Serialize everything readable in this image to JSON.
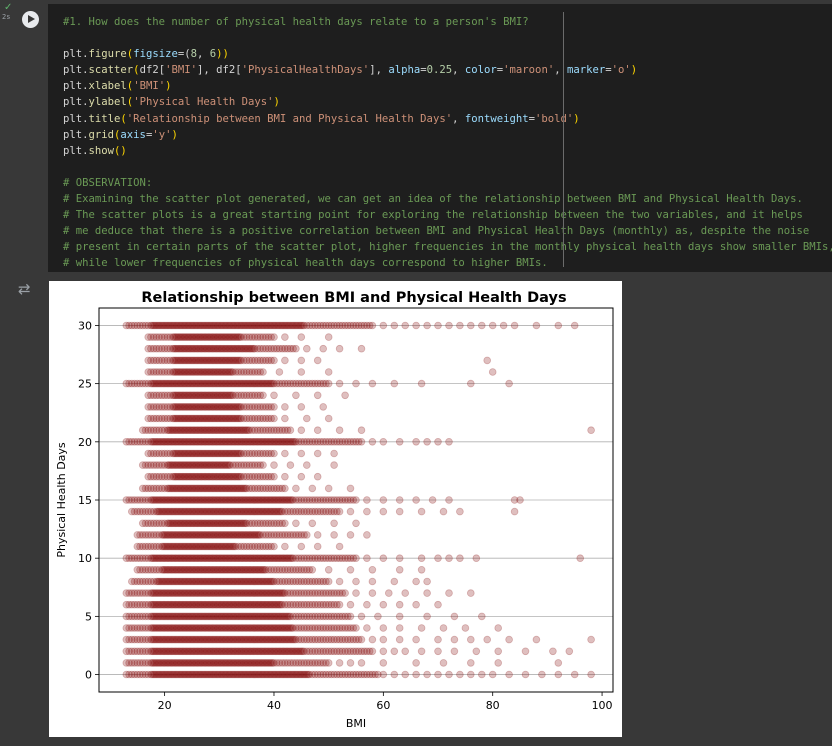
{
  "cell": {
    "status_time": "2s",
    "code_lines": [
      [
        {
          "t": "#1. How does the number of physical health days relate to a person's BMI?",
          "c": "comment"
        }
      ],
      [],
      [
        {
          "t": "plt.",
          "c": "plain"
        },
        {
          "t": "figure",
          "c": "func"
        },
        {
          "t": "(",
          "c": "paren"
        },
        {
          "t": "figsize",
          "c": "param"
        },
        {
          "t": "=(",
          "c": "plain"
        },
        {
          "t": "8",
          "c": "number"
        },
        {
          "t": ", ",
          "c": "plain"
        },
        {
          "t": "6",
          "c": "number"
        },
        {
          "t": "))",
          "c": "paren"
        }
      ],
      [
        {
          "t": "plt.",
          "c": "plain"
        },
        {
          "t": "scatter",
          "c": "func"
        },
        {
          "t": "(",
          "c": "paren"
        },
        {
          "t": "df2[",
          "c": "plain"
        },
        {
          "t": "'BMI'",
          "c": "string"
        },
        {
          "t": "], df2[",
          "c": "plain"
        },
        {
          "t": "'PhysicalHealthDays'",
          "c": "string"
        },
        {
          "t": "], ",
          "c": "plain"
        },
        {
          "t": "alpha",
          "c": "param"
        },
        {
          "t": "=",
          "c": "plain"
        },
        {
          "t": "0.25",
          "c": "number"
        },
        {
          "t": ", ",
          "c": "plain"
        },
        {
          "t": "color",
          "c": "param"
        },
        {
          "t": "=",
          "c": "plain"
        },
        {
          "t": "'maroon'",
          "c": "string"
        },
        {
          "t": ", ",
          "c": "plain"
        },
        {
          "t": "marker",
          "c": "param"
        },
        {
          "t": "=",
          "c": "plain"
        },
        {
          "t": "'o'",
          "c": "string"
        },
        {
          "t": ")",
          "c": "paren"
        }
      ],
      [
        {
          "t": "plt.",
          "c": "plain"
        },
        {
          "t": "xlabel",
          "c": "func"
        },
        {
          "t": "(",
          "c": "paren"
        },
        {
          "t": "'BMI'",
          "c": "string"
        },
        {
          "t": ")",
          "c": "paren"
        }
      ],
      [
        {
          "t": "plt.",
          "c": "plain"
        },
        {
          "t": "ylabel",
          "c": "func"
        },
        {
          "t": "(",
          "c": "paren"
        },
        {
          "t": "'Physical Health Days'",
          "c": "string"
        },
        {
          "t": ")",
          "c": "paren"
        }
      ],
      [
        {
          "t": "plt.",
          "c": "plain"
        },
        {
          "t": "title",
          "c": "func"
        },
        {
          "t": "(",
          "c": "paren"
        },
        {
          "t": "'Relationship between BMI and Physical Health Days'",
          "c": "string"
        },
        {
          "t": ", ",
          "c": "plain"
        },
        {
          "t": "fontweight",
          "c": "param"
        },
        {
          "t": "=",
          "c": "plain"
        },
        {
          "t": "'bold'",
          "c": "string"
        },
        {
          "t": ")",
          "c": "paren"
        }
      ],
      [
        {
          "t": "plt.",
          "c": "plain"
        },
        {
          "t": "grid",
          "c": "func"
        },
        {
          "t": "(",
          "c": "paren"
        },
        {
          "t": "axis",
          "c": "param"
        },
        {
          "t": "=",
          "c": "plain"
        },
        {
          "t": "'y'",
          "c": "string"
        },
        {
          "t": ")",
          "c": "paren"
        }
      ],
      [
        {
          "t": "plt.",
          "c": "plain"
        },
        {
          "t": "show",
          "c": "func"
        },
        {
          "t": "()",
          "c": "paren"
        }
      ],
      [],
      [
        {
          "t": "# OBSERVATION:",
          "c": "comment"
        }
      ],
      [
        {
          "t": "# Examining the scatter plot generated, we can get an idea of the relationship between BMI and Physical Health Days.",
          "c": "comment"
        }
      ],
      [
        {
          "t": "# The scatter plots is a great starting point for exploring the relationship between the two variables, and it helps",
          "c": "comment"
        }
      ],
      [
        {
          "t": "# me deduce that there is a positive correlation between BMI and Physical Health Days (monthly) as, despite the noise",
          "c": "comment"
        }
      ],
      [
        {
          "t": "# present in certain parts of the scatter plot, higher frequencies in the monthly physical health days show smaller BMIs,",
          "c": "comment"
        }
      ],
      [
        {
          "t": "# while lower frequencies of physical health days correspond to higher BMIs.",
          "c": "comment"
        }
      ]
    ]
  },
  "chart_data": {
    "type": "scatter",
    "title": "Relationship between BMI and Physical Health Days",
    "xlabel": "BMI",
    "ylabel": "Physical Health Days",
    "xlim": [
      8,
      102
    ],
    "ylim": [
      -1.5,
      31.5
    ],
    "xticks": [
      20,
      40,
      60,
      80,
      100
    ],
    "yticks": [
      0,
      5,
      10,
      15,
      20,
      25,
      30
    ],
    "grid": "y",
    "marker_color": "#800000",
    "alpha": 0.25,
    "rows": [
      {
        "y": 0,
        "dense": [
          13,
          59
        ],
        "sparse": [
          60,
          62,
          64,
          66,
          68,
          70,
          72,
          74,
          76,
          78,
          80,
          83,
          86,
          89,
          92,
          95,
          98
        ]
      },
      {
        "y": 1,
        "dense": [
          13,
          50
        ],
        "sparse": [
          52,
          54,
          56,
          60,
          66,
          71,
          76,
          81,
          92
        ]
      },
      {
        "y": 2,
        "dense": [
          13,
          58
        ],
        "sparse": [
          60,
          62,
          64,
          67,
          70,
          73,
          77,
          81,
          86,
          91,
          94
        ]
      },
      {
        "y": 3,
        "dense": [
          13,
          56
        ],
        "sparse": [
          58,
          60,
          63,
          66,
          70,
          73,
          76,
          79,
          83,
          88,
          98
        ]
      },
      {
        "y": 4,
        "dense": [
          13,
          55
        ],
        "sparse": [
          57,
          60,
          63,
          67,
          71,
          75,
          81
        ]
      },
      {
        "y": 5,
        "dense": [
          13,
          54
        ],
        "sparse": [
          56,
          59,
          63,
          68,
          73,
          78
        ]
      },
      {
        "y": 6,
        "dense": [
          13,
          52
        ],
        "sparse": [
          54,
          57,
          60,
          63,
          66,
          70
        ]
      },
      {
        "y": 7,
        "dense": [
          13,
          53
        ],
        "sparse": [
          55,
          58,
          61,
          64,
          68,
          72,
          76
        ]
      },
      {
        "y": 8,
        "dense": [
          14,
          50
        ],
        "sparse": [
          52,
          55,
          58,
          62,
          66,
          68
        ]
      },
      {
        "y": 9,
        "dense": [
          15,
          47
        ],
        "sparse": [
          50,
          54,
          58,
          63,
          67
        ]
      },
      {
        "y": 10,
        "dense": [
          13,
          55
        ],
        "sparse": [
          57,
          60,
          63,
          67,
          70,
          72,
          74,
          77,
          96
        ]
      },
      {
        "y": 11,
        "dense": [
          15,
          40
        ],
        "sparse": [
          42,
          45,
          48,
          52
        ]
      },
      {
        "y": 12,
        "dense": [
          15,
          46
        ],
        "sparse": [
          48,
          51,
          54,
          57
        ]
      },
      {
        "y": 13,
        "dense": [
          16,
          42
        ],
        "sparse": [
          44,
          47,
          51,
          55
        ]
      },
      {
        "y": 14,
        "dense": [
          14,
          52
        ],
        "sparse": [
          54,
          57,
          60,
          63,
          67,
          71,
          74,
          84
        ]
      },
      {
        "y": 15,
        "dense": [
          13,
          55
        ],
        "sparse": [
          57,
          60,
          63,
          66,
          69,
          72,
          84,
          85
        ]
      },
      {
        "y": 16,
        "dense": [
          16,
          42
        ],
        "sparse": [
          44,
          47,
          50,
          54
        ]
      },
      {
        "y": 17,
        "dense": [
          17,
          40
        ],
        "sparse": [
          42,
          45,
          48
        ]
      },
      {
        "y": 18,
        "dense": [
          16,
          38
        ],
        "sparse": [
          40,
          43,
          46,
          51
        ]
      },
      {
        "y": 19,
        "dense": [
          17,
          40
        ],
        "sparse": [
          42,
          45,
          48,
          51
        ]
      },
      {
        "y": 20,
        "dense": [
          13,
          56
        ],
        "sparse": [
          58,
          60,
          63,
          66,
          68,
          70,
          72
        ]
      },
      {
        "y": 21,
        "dense": [
          16,
          43
        ],
        "sparse": [
          45,
          48,
          52,
          56,
          98
        ]
      },
      {
        "y": 22,
        "dense": [
          17,
          40
        ],
        "sparse": [
          42,
          46,
          50
        ]
      },
      {
        "y": 23,
        "dense": [
          17,
          40
        ],
        "sparse": [
          42,
          45,
          49
        ]
      },
      {
        "y": 24,
        "dense": [
          17,
          38
        ],
        "sparse": [
          40,
          44,
          48,
          53
        ]
      },
      {
        "y": 25,
        "dense": [
          13,
          50
        ],
        "sparse": [
          52,
          55,
          58,
          62,
          67,
          76,
          83
        ]
      },
      {
        "y": 26,
        "dense": [
          17,
          38
        ],
        "sparse": [
          41,
          45,
          50,
          80
        ]
      },
      {
        "y": 27,
        "dense": [
          17,
          40
        ],
        "sparse": [
          42,
          45,
          48,
          79
        ]
      },
      {
        "y": 28,
        "dense": [
          17,
          44
        ],
        "sparse": [
          46,
          49,
          52,
          56
        ]
      },
      {
        "y": 29,
        "dense": [
          17,
          40
        ],
        "sparse": [
          42,
          45,
          50
        ]
      },
      {
        "y": 30,
        "dense": [
          13,
          58
        ],
        "sparse": [
          60,
          62,
          64,
          66,
          68,
          70,
          72,
          74,
          76,
          78,
          80,
          82,
          84,
          88,
          92,
          95
        ]
      }
    ]
  }
}
